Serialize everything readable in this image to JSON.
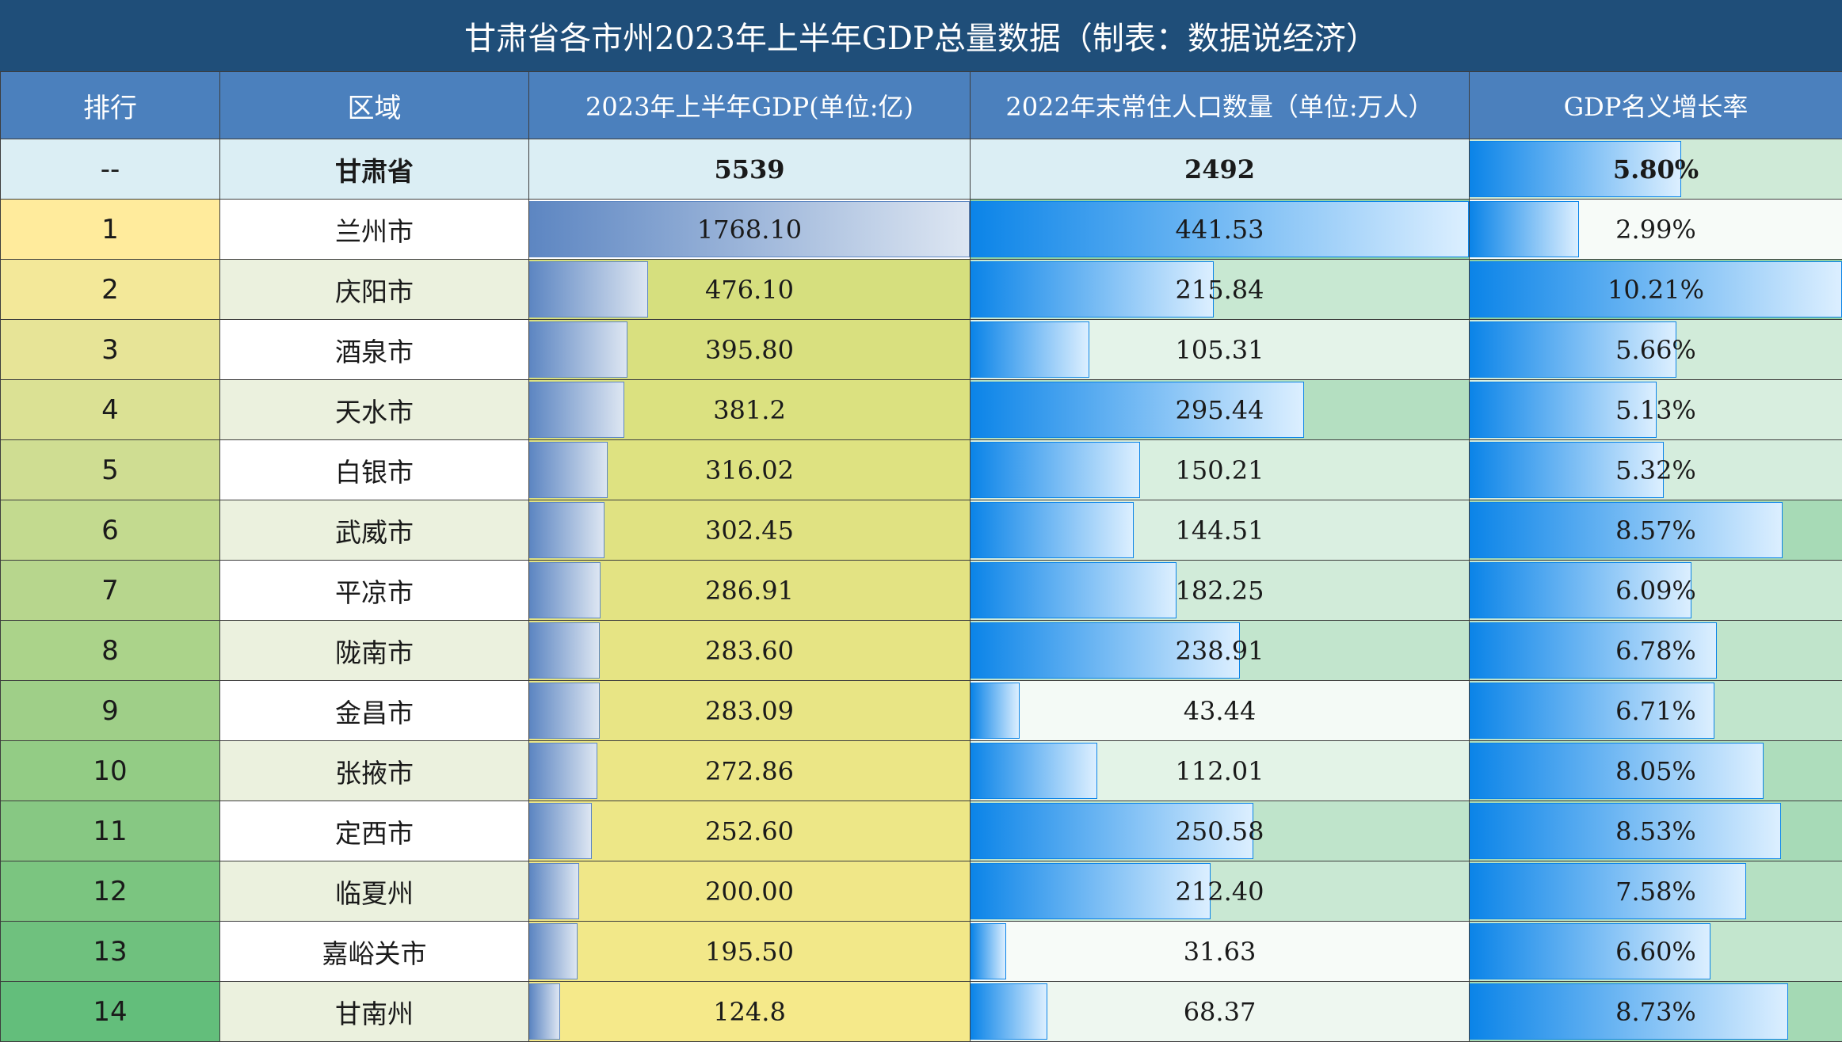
{
  "title": "甘肃省各市州2023年上半年GDP总量数据（制表：数据说经济）",
  "headers": {
    "rank": "排行",
    "region": "区域",
    "gdp": "2023年上半年GDP(单位:亿)",
    "population": "2022年末常住人口数量（单位:万人）",
    "growth": "GDP名义增长率"
  },
  "total": {
    "rank": "--",
    "region": "甘肃省",
    "gdp": "5539",
    "population": "2492",
    "growth": "5.80%",
    "growth_value": 5.8
  },
  "rows": [
    {
      "rank": "1",
      "region": "兰州市",
      "gdp": "1768.10",
      "gdp_value": 1768.1,
      "population": "441.53",
      "population_value": 441.53,
      "growth": "2.99%",
      "growth_value": 2.99
    },
    {
      "rank": "2",
      "region": "庆阳市",
      "gdp": "476.10",
      "gdp_value": 476.1,
      "population": "215.84",
      "population_value": 215.84,
      "growth": "10.21%",
      "growth_value": 10.21
    },
    {
      "rank": "3",
      "region": "酒泉市",
      "gdp": "395.80",
      "gdp_value": 395.8,
      "population": "105.31",
      "population_value": 105.31,
      "growth": "5.66%",
      "growth_value": 5.66
    },
    {
      "rank": "4",
      "region": "天水市",
      "gdp": "381.2",
      "gdp_value": 381.2,
      "population": "295.44",
      "population_value": 295.44,
      "growth": "5.13%",
      "growth_value": 5.13
    },
    {
      "rank": "5",
      "region": "白银市",
      "gdp": "316.02",
      "gdp_value": 316.02,
      "population": "150.21",
      "population_value": 150.21,
      "growth": "5.32%",
      "growth_value": 5.32
    },
    {
      "rank": "6",
      "region": "武威市",
      "gdp": "302.45",
      "gdp_value": 302.45,
      "population": "144.51",
      "population_value": 144.51,
      "growth": "8.57%",
      "growth_value": 8.57
    },
    {
      "rank": "7",
      "region": "平凉市",
      "gdp": "286.91",
      "gdp_value": 286.91,
      "population": "182.25",
      "population_value": 182.25,
      "growth": "6.09%",
      "growth_value": 6.09
    },
    {
      "rank": "8",
      "region": "陇南市",
      "gdp": "283.60",
      "gdp_value": 283.6,
      "population": "238.91",
      "population_value": 238.91,
      "growth": "6.78%",
      "growth_value": 6.78
    },
    {
      "rank": "9",
      "region": "金昌市",
      "gdp": "283.09",
      "gdp_value": 283.09,
      "population": "43.44",
      "population_value": 43.44,
      "growth": "6.71%",
      "growth_value": 6.71
    },
    {
      "rank": "10",
      "region": "张掖市",
      "gdp": "272.86",
      "gdp_value": 272.86,
      "population": "112.01",
      "population_value": 112.01,
      "growth": "8.05%",
      "growth_value": 8.05
    },
    {
      "rank": "11",
      "region": "定西市",
      "gdp": "252.60",
      "gdp_value": 252.6,
      "population": "250.58",
      "population_value": 250.58,
      "growth": "8.53%",
      "growth_value": 8.53
    },
    {
      "rank": "12",
      "region": "临夏州",
      "gdp": "200.00",
      "gdp_value": 200.0,
      "population": "212.40",
      "population_value": 212.4,
      "growth": "7.58%",
      "growth_value": 7.58
    },
    {
      "rank": "13",
      "region": "嘉峪关市",
      "gdp": "195.50",
      "gdp_value": 195.5,
      "population": "31.63",
      "population_value": 31.63,
      "growth": "6.60%",
      "growth_value": 6.6
    },
    {
      "rank": "14",
      "region": "甘南州",
      "gdp": "124.8",
      "gdp_value": 124.8,
      "population": "68.37",
      "population_value": 68.37,
      "growth": "8.73%",
      "growth_value": 8.73
    }
  ],
  "colors": {
    "title_bg": "#1f4e79",
    "header_bg": "#4b80bd",
    "total_bg": "#dbeef4",
    "rank_top": "#ffeb9c",
    "rank_bottom": "#63be7b",
    "gdp_bg_top": "#d6df7e",
    "gdp_bg_bottom": "#f5e98a",
    "green_high": "#8fd0a3",
    "green_low": "#f7fbf8",
    "bar_blue": "#0b84e8",
    "bar_gdp": "#5d86c2"
  }
}
